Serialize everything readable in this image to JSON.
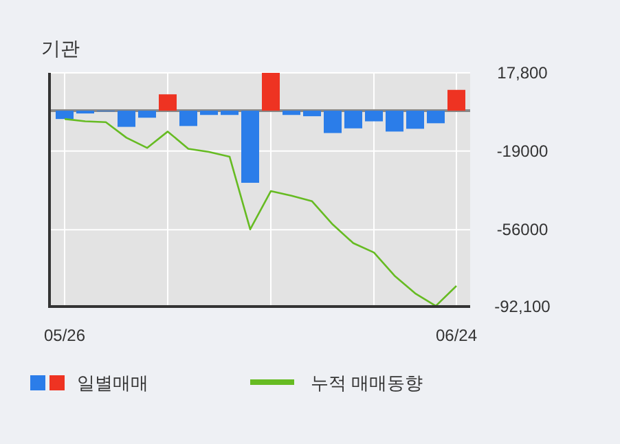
{
  "chart_data": {
    "type": "bar",
    "title": "기관",
    "categories": [
      "05/26",
      null,
      null,
      null,
      null,
      null,
      null,
      null,
      null,
      null,
      null,
      null,
      null,
      null,
      null,
      null,
      null,
      null,
      null,
      "06/24"
    ],
    "series": [
      {
        "name": "일별매매",
        "colors": [
          "#2b7de9",
          "#2b7de9",
          "#2b7de9",
          "#2b7de9",
          "#2b7de9",
          "#ee3322",
          "#2b7de9",
          "#2b7de9",
          "#2b7de9",
          "#2b7de9",
          "#ee3322",
          "#2b7de9",
          "#2b7de9",
          "#2b7de9",
          "#2b7de9",
          "#2b7de9",
          "#2b7de9",
          "#2b7de9",
          "#2b7de9",
          "#ee3322"
        ],
        "values": [
          -3900,
          -1300,
          -100,
          -7600,
          -3300,
          7700,
          -7200,
          -2000,
          -2000,
          -33900,
          17800,
          -2000,
          -2600,
          -10500,
          -8300,
          -5000,
          -9800,
          -8500,
          -5900,
          9800
        ]
      },
      {
        "name": "누적 매매동향",
        "type": "line",
        "color": "#66bb22",
        "values": [
          -3900,
          -5000,
          -5400,
          -12700,
          -17500,
          -9800,
          -17900,
          -19400,
          -21600,
          -55800,
          -37800,
          -40000,
          -42600,
          -53500,
          -62300,
          -66700,
          -77600,
          -85900,
          -91800,
          -82400
        ]
      }
    ],
    "ylim": [
      -92100,
      17800
    ],
    "yticks": [
      {
        "value": 17800,
        "label": "17,800"
      },
      {
        "value": -19000,
        "label": "-19000"
      },
      {
        "value": -56000,
        "label": "-56000"
      },
      {
        "value": -92100,
        "label": "-92,100"
      }
    ],
    "ref_lines": [
      {
        "axis": "y",
        "value": 0,
        "color": "#888888"
      }
    ],
    "grid": true,
    "legend": "bottom"
  }
}
